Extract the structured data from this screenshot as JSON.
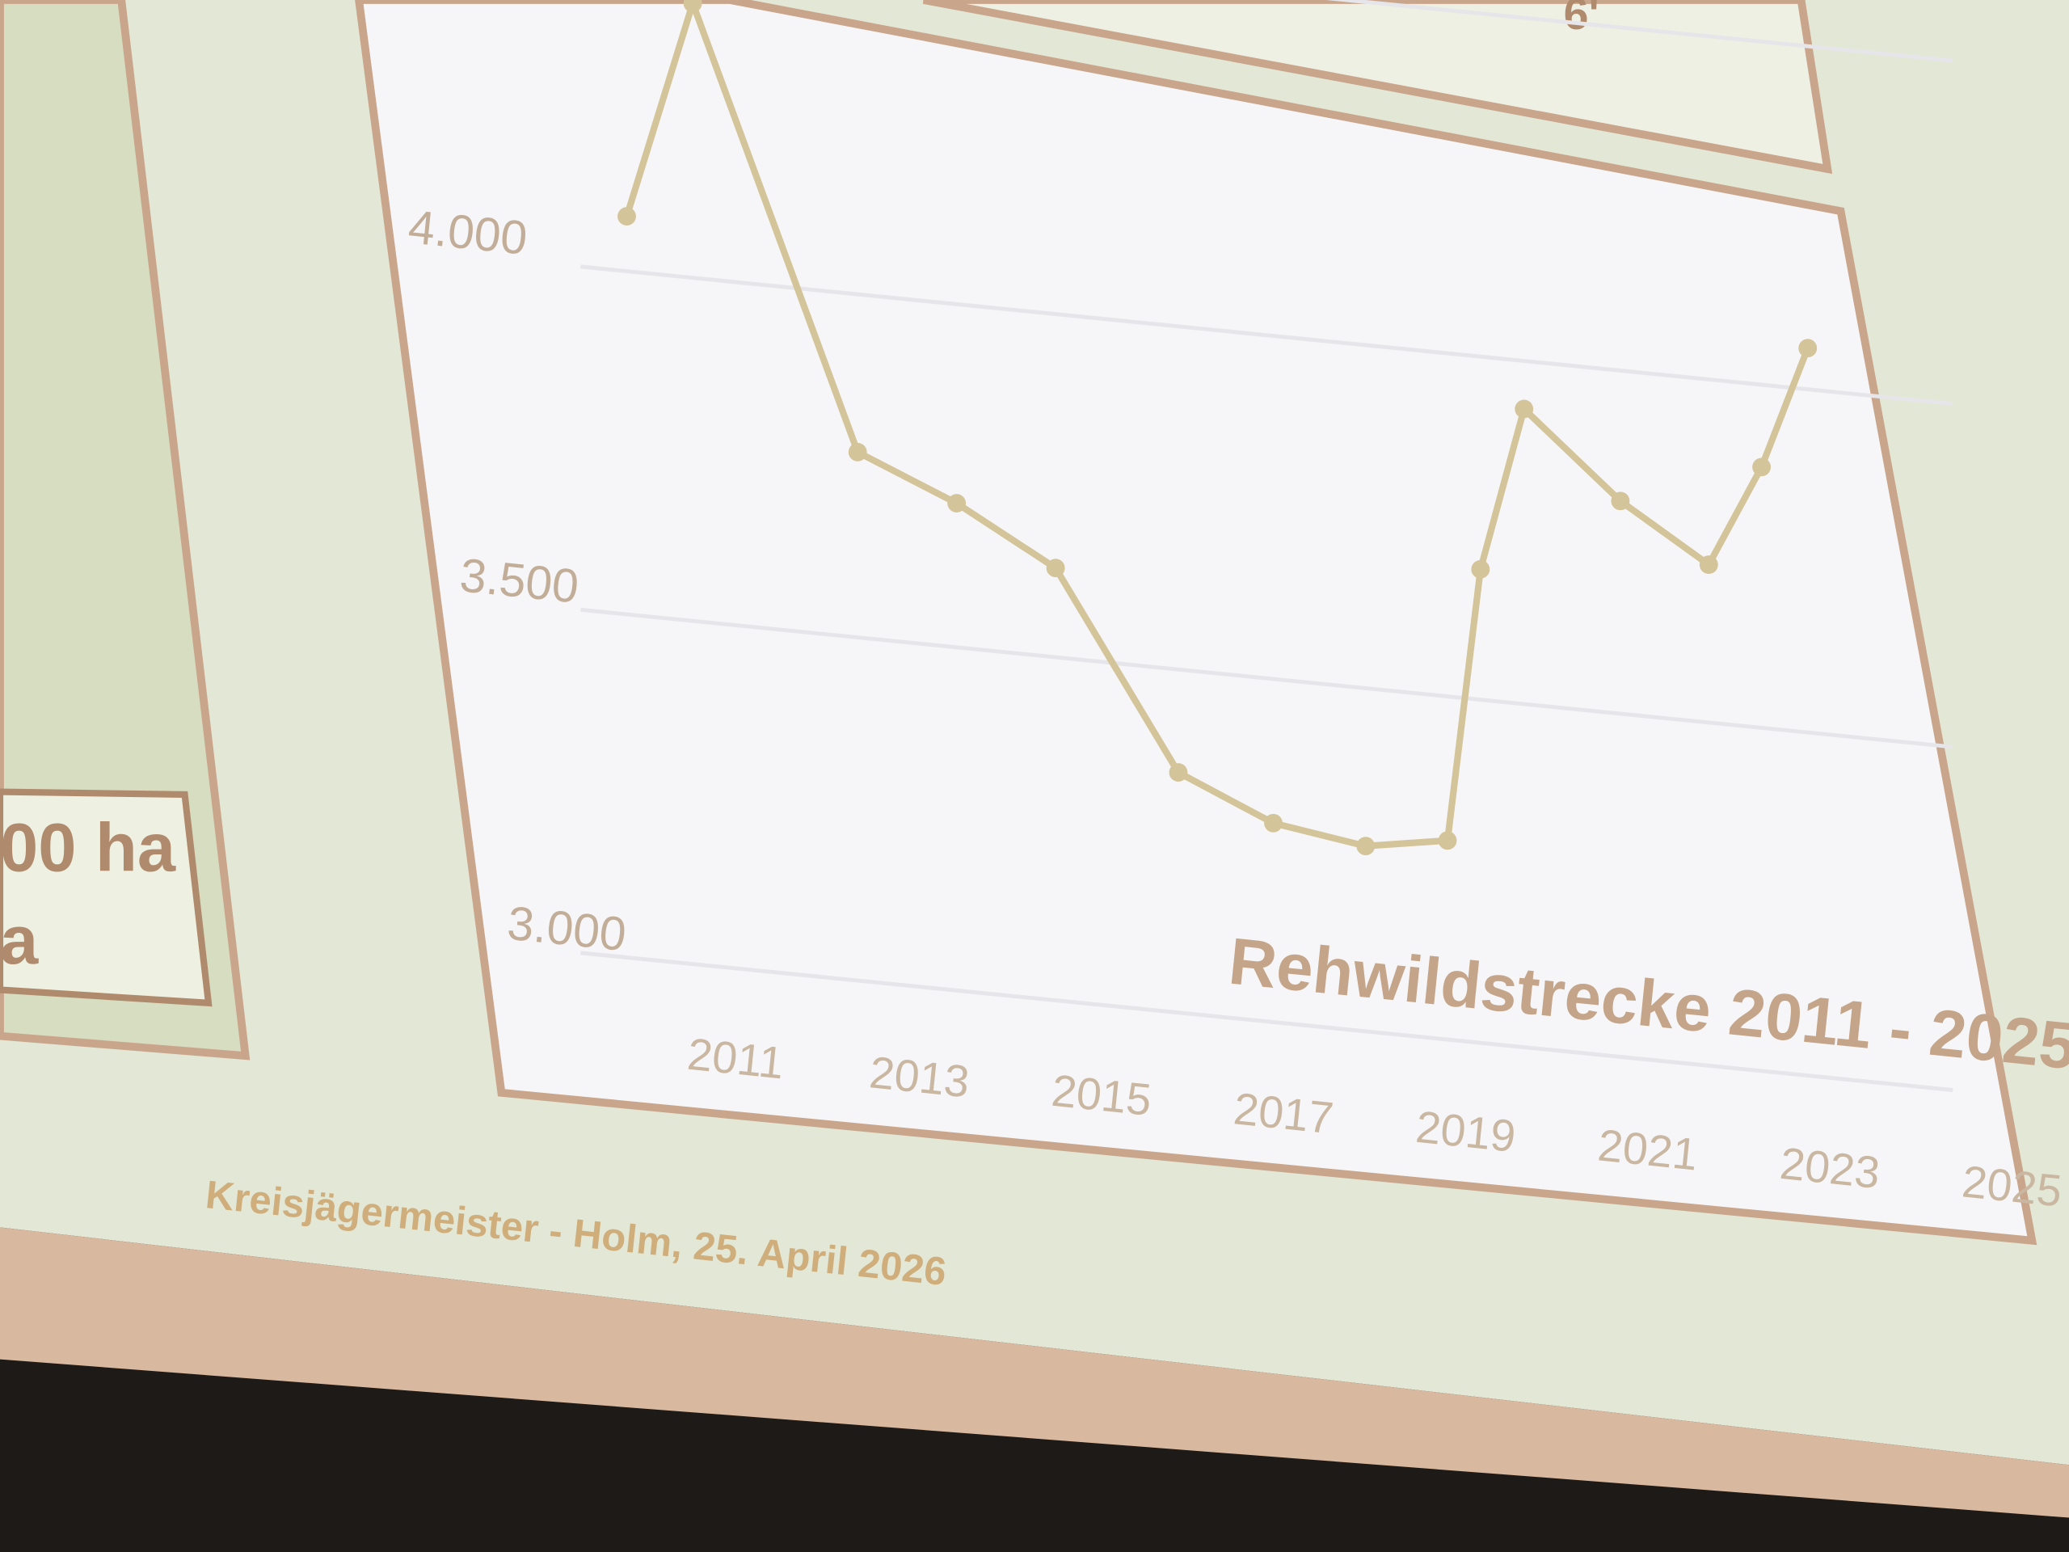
{
  "slide": {
    "footer": "Kreisjägermeister - Holm, 25. April 2026",
    "left_box_fragments": [
      "00 ha",
      "a"
    ],
    "top_box_fragment": "6'"
  },
  "colors": {
    "line": "#d4c49a",
    "frame": "#c9a58c",
    "slide_background": "#e4e8d8",
    "chart_background": "#f7f7f9"
  },
  "chart_data": {
    "type": "line",
    "title": "Rehwildstrecke 2011 - 2025",
    "x": [
      2011,
      2012,
      2013,
      2014,
      2015,
      2016,
      2017,
      2018,
      2019,
      2020,
      2021,
      2022,
      2023,
      2024,
      2025
    ],
    "values": [
      4080,
      4400,
      3770,
      3710,
      3630,
      3350,
      3290,
      3270,
      3290,
      3690,
      3930,
      3810,
      3730,
      3880,
      4060
    ],
    "x_tick_labels": [
      "2011",
      "2013",
      "2015",
      "2017",
      "2019",
      "2021",
      "2023",
      "2025"
    ],
    "y_tick_labels": [
      "3.000",
      "3.500",
      "4.000"
    ],
    "y_ticks": [
      3000,
      3500,
      4000
    ],
    "ylim": [
      3000,
      4450
    ],
    "xlim": [
      2011,
      2025
    ],
    "grid": true,
    "markers": true,
    "legend": "none"
  }
}
